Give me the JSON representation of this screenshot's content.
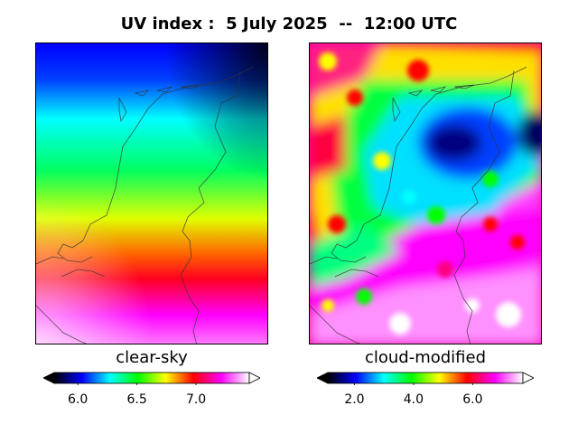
{
  "title": "UV index :  5 July 2025  --  12:00 UTC",
  "colormap": [
    "#000000",
    "#0000ff",
    "#00ffff",
    "#00ff00",
    "#ffff00",
    "#ff0000",
    "#ff00ff",
    "#ffffff"
  ],
  "chart_data": [
    {
      "type": "heatmap",
      "label": "clear-sky",
      "colorbar": {
        "range": [
          5.8,
          7.45
        ],
        "ticks": [
          6.0,
          6.5,
          7.0
        ],
        "tick_labels": [
          "6.0",
          "6.5",
          "7.0"
        ],
        "extend": "both"
      },
      "field_description": "smooth north-to-south gradient",
      "latitude_profile_values": [
        5.9,
        6.1,
        6.4,
        6.6,
        6.8,
        7.0,
        7.25,
        7.4
      ]
    },
    {
      "type": "heatmap",
      "label": "cloud-modified",
      "colorbar": {
        "range": [
          1.1,
          7.7
        ],
        "ticks": [
          2.0,
          4.0,
          6.0
        ],
        "tick_labels": [
          "2.0",
          "4.0",
          "6.0"
        ],
        "extend": "both"
      },
      "field_description": "patchy field with cloud-reduced minimum in north-east"
    }
  ]
}
